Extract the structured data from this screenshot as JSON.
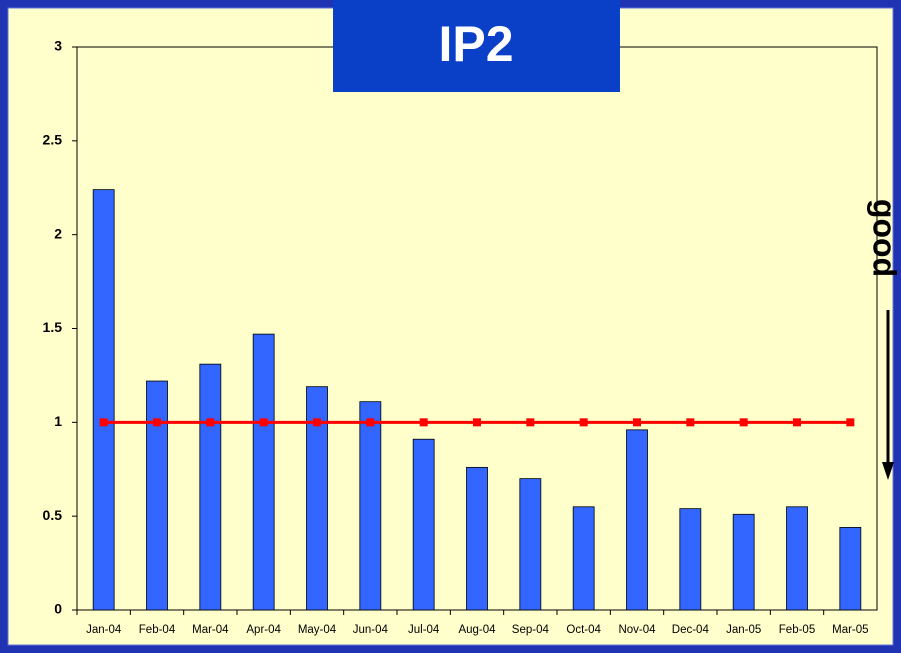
{
  "chart_data": {
    "type": "bar",
    "title": "IP2",
    "categories": [
      "Jan-04",
      "Feb-04",
      "Mar-04",
      "Apr-04",
      "May-04",
      "Jun-04",
      "Jul-04",
      "Aug-04",
      "Sep-04",
      "Oct-04",
      "Nov-04",
      "Dec-04",
      "Jan-05",
      "Feb-05",
      "Mar-05"
    ],
    "series": [
      {
        "type": "bar",
        "color": "#3366ff",
        "values": [
          2.24,
          1.22,
          1.31,
          1.47,
          1.19,
          1.11,
          0.91,
          0.76,
          0.7,
          0.55,
          0.96,
          0.54,
          0.51,
          0.55,
          0.44
        ]
      },
      {
        "type": "line",
        "color": "#ff0000",
        "values": [
          1,
          1,
          1,
          1,
          1,
          1,
          1,
          1,
          1,
          1,
          1,
          1,
          1,
          1,
          1
        ]
      }
    ],
    "ylim": [
      0,
      3
    ],
    "yticks": [
      0,
      0.5,
      1,
      1.5,
      2,
      2.5,
      3
    ],
    "grid": false,
    "annotation": "good"
  }
}
